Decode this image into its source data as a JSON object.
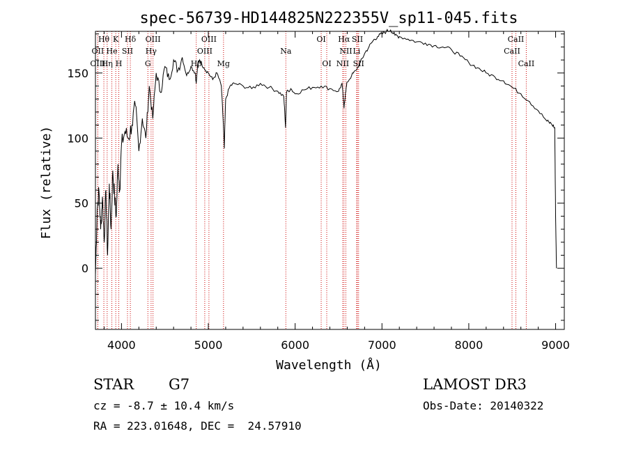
{
  "chart_data": {
    "type": "line",
    "title": "spec-56739-HD144825N222355V_sp11-045.fits",
    "xlabel": "Wavelength (Å)",
    "ylabel": "Flux (relative)",
    "xlim": [
      3700,
      9100
    ],
    "ylim": [
      -47,
      182
    ],
    "xticks": [
      4000,
      5000,
      6000,
      7000,
      8000,
      9000
    ],
    "yticks": [
      0,
      50,
      100,
      150
    ],
    "grid": false,
    "line_color": "#000000",
    "marker_color": "#cc0000",
    "series": [
      {
        "name": "flux",
        "x": [
          3700,
          3720,
          3740,
          3760,
          3780,
          3800,
          3820,
          3840,
          3860,
          3880,
          3900,
          3920,
          3940,
          3960,
          3980,
          4000,
          4040,
          4080,
          4120,
          4160,
          4200,
          4240,
          4280,
          4320,
          4360,
          4400,
          4450,
          4500,
          4550,
          4600,
          4650,
          4700,
          4750,
          4800,
          4850,
          4860,
          4880,
          4900,
          4950,
          5000,
          5050,
          5100,
          5150,
          5170,
          5184,
          5200,
          5250,
          5300,
          5400,
          5500,
          5600,
          5700,
          5800,
          5870,
          5890,
          5900,
          5950,
          6000,
          6100,
          6200,
          6300,
          6400,
          6500,
          6540,
          6563,
          6580,
          6600,
          6650,
          6700,
          6750,
          6800,
          6850,
          6900,
          6950,
          7000,
          7050,
          7100,
          7150,
          7200,
          7300,
          7400,
          7500,
          7600,
          7700,
          7800,
          7900,
          8000,
          8100,
          8200,
          8300,
          8400,
          8500,
          8600,
          8700,
          8800,
          8900,
          8950,
          8990,
          9000,
          9010
        ],
        "y": [
          -5,
          45,
          60,
          30,
          55,
          20,
          60,
          10,
          65,
          30,
          75,
          55,
          40,
          80,
          60,
          95,
          105,
          100,
          110,
          125,
          90,
          115,
          100,
          140,
          115,
          150,
          135,
          155,
          145,
          160,
          152,
          162,
          148,
          155,
          150,
          142,
          158,
          160,
          154,
          150,
          145,
          150,
          140,
          115,
          92,
          130,
          140,
          142,
          140,
          138,
          142,
          139,
          136,
          132,
          108,
          135,
          138,
          134,
          137,
          139,
          140,
          138,
          136,
          142,
          123,
          135,
          143,
          148,
          152,
          158,
          165,
          170,
          175,
          178,
          180,
          182,
          183,
          179,
          178,
          176,
          174,
          173,
          171,
          170,
          168,
          163,
          158,
          154,
          150,
          147,
          144,
          139,
          134,
          128,
          121,
          113,
          111,
          108,
          40,
          0
        ]
      }
    ],
    "lines_rows": [
      [
        {
          "label": "Hθ",
          "x": 3797
        },
        {
          "label": "K",
          "x": 3934
        },
        {
          "label": "Hδ",
          "x": 4102
        },
        {
          "label": "OIII",
          "x": 4363
        },
        {
          "label": "OIII",
          "x": 5007
        },
        {
          "label": "OI",
          "x": 6300
        },
        {
          "label": "Hα",
          "x": 6563
        },
        {
          "label": "SII",
          "x": 6717
        },
        {
          "label": "CaII",
          "x": 8542
        }
      ],
      [
        {
          "label": "OII",
          "x": 3727
        },
        {
          "label": "He",
          "x": 3889
        },
        {
          "label": "SII",
          "x": 4069
        },
        {
          "label": "Hγ",
          "x": 4341
        },
        {
          "label": "OIII",
          "x": 4959
        },
        {
          "label": "Na",
          "x": 5893
        },
        {
          "label": "NII",
          "x": 6584
        },
        {
          "label": "Li",
          "x": 6708
        },
        {
          "label": "CaII",
          "x": 8498
        }
      ],
      [
        {
          "label": "OIII",
          "x": 3727
        },
        {
          "label": "Hη",
          "x": 3835
        },
        {
          "label": "H",
          "x": 3969
        },
        {
          "label": "G",
          "x": 4304
        },
        {
          "label": "Hβ",
          "x": 4861
        },
        {
          "label": "Mg",
          "x": 5175
        },
        {
          "label": "OI",
          "x": 6364
        },
        {
          "label": "NII",
          "x": 6548
        },
        {
          "label": "SII",
          "x": 6731
        },
        {
          "label": "CaII",
          "x": 8662
        }
      ]
    ]
  },
  "footer": {
    "class_label": "STAR",
    "subclass_label": "G7",
    "survey": "LAMOST DR3",
    "cz": "cz = -8.7 ± 10.4 km/s",
    "obs_date": "Obs-Date: 20140322",
    "radec": "RA = 223.01648, DEC =  24.57910"
  }
}
